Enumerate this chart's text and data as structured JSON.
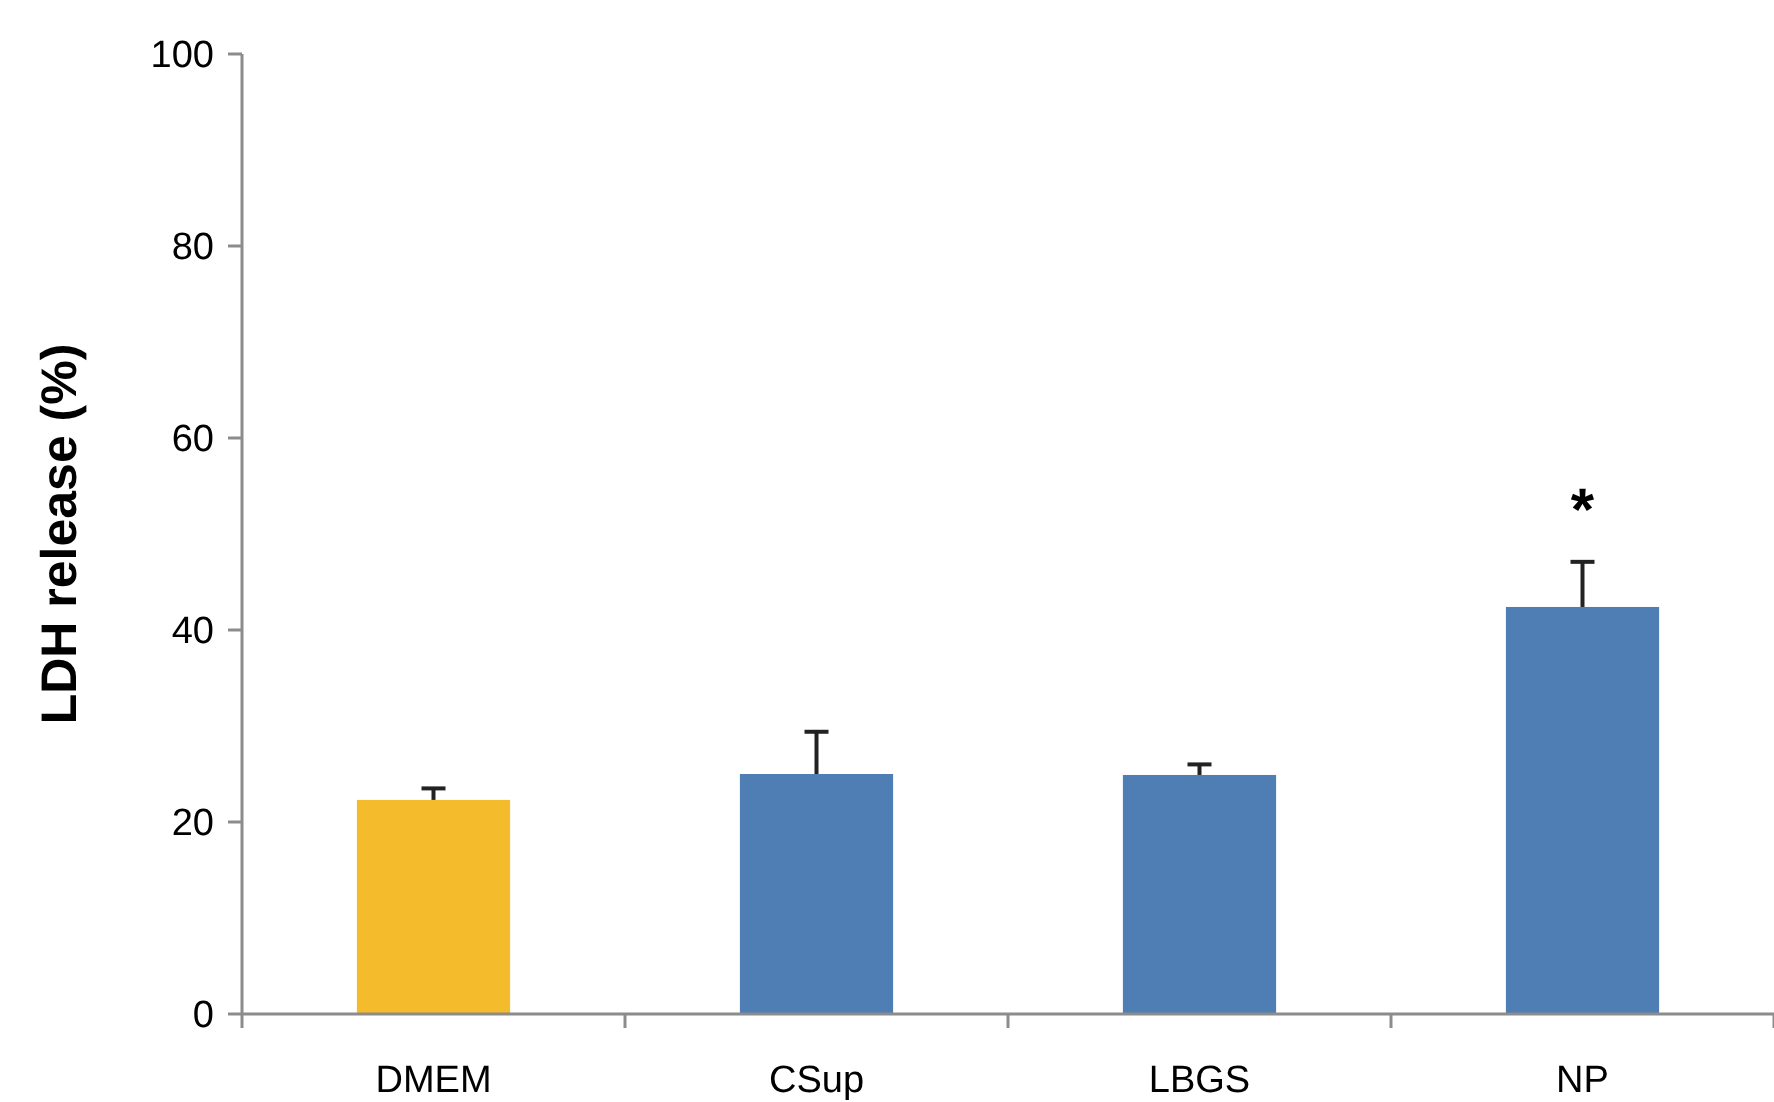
{
  "chart_data": {
    "type": "bar",
    "ylabel": "LDH release (%)",
    "categories": [
      "DMEM",
      "CSup",
      "LBGS",
      "NP"
    ],
    "values": [
      22.3,
      25.0,
      24.9,
      42.4
    ],
    "colors": [
      "#f4bc2c",
      "#4f7eb5",
      "#4f7eb5",
      "#4f7eb5"
    ],
    "errors": [
      [
        22.3,
        23.5
      ],
      [
        25.0,
        29.4
      ],
      [
        24.9,
        26.0
      ],
      [
        42.4,
        47.1
      ]
    ],
    "ylim": [
      0,
      100
    ],
    "yticks": [
      0,
      20,
      40,
      60,
      80,
      100
    ],
    "grid": false,
    "annotations": [
      {
        "text": "*",
        "x": "NP",
        "y": 47.1
      }
    ]
  }
}
